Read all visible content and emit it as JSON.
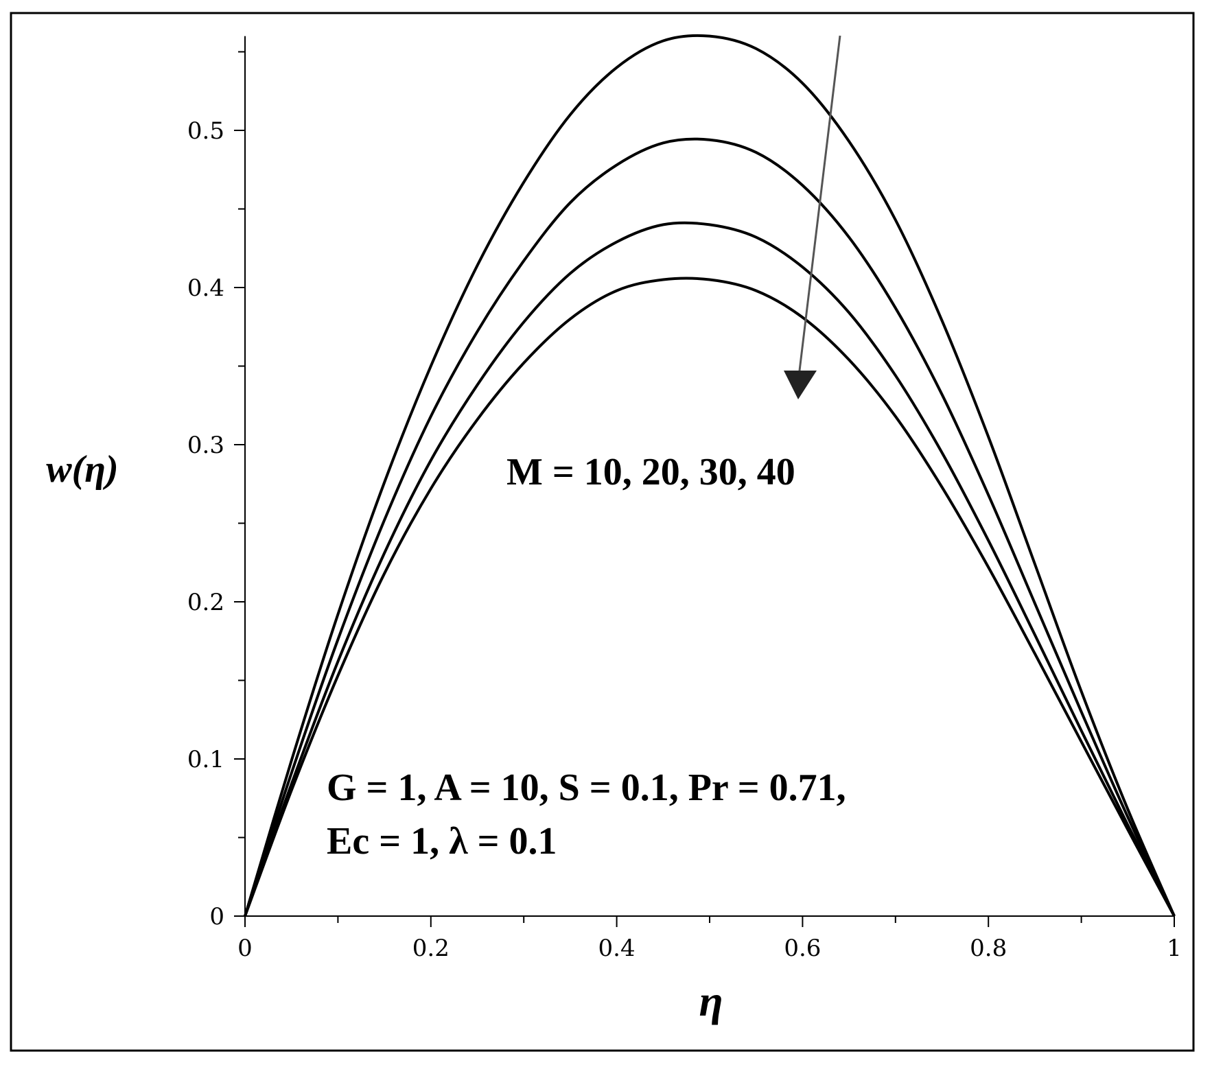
{
  "chart_data": {
    "type": "line",
    "xlabel": "η",
    "ylabel": "w(η)",
    "xlim": [
      0,
      1
    ],
    "ylim": [
      0,
      0.56
    ],
    "x_ticks": [
      "0",
      "0.2",
      "0.4",
      "0.6",
      "0.8",
      "1"
    ],
    "y_ticks": [
      "0",
      "0.1",
      "0.2",
      "0.3",
      "0.4",
      "0.5"
    ],
    "x": [
      0,
      0.05,
      0.1,
      0.15,
      0.2,
      0.25,
      0.3,
      0.35,
      0.4,
      0.45,
      0.5,
      0.55,
      0.6,
      0.65,
      0.7,
      0.75,
      0.8,
      0.85,
      0.9,
      0.95,
      1
    ],
    "series": [
      {
        "values": [
          0,
          0.099,
          0.192,
          0.276,
          0.35,
          0.414,
          0.467,
          0.51,
          0.54,
          0.557,
          0.56,
          0.552,
          0.53,
          0.493,
          0.443,
          0.379,
          0.305,
          0.224,
          0.143,
          0.068,
          0
        ]
      },
      {
        "values": [
          0,
          0.091,
          0.176,
          0.252,
          0.318,
          0.372,
          0.417,
          0.454,
          0.478,
          0.492,
          0.494,
          0.486,
          0.465,
          0.432,
          0.387,
          0.332,
          0.268,
          0.199,
          0.13,
          0.063,
          0
        ]
      },
      {
        "values": [
          0,
          0.084,
          0.162,
          0.231,
          0.29,
          0.338,
          0.378,
          0.409,
          0.429,
          0.44,
          0.44,
          0.432,
          0.413,
          0.384,
          0.344,
          0.295,
          0.239,
          0.179,
          0.118,
          0.058,
          0
        ]
      },
      {
        "values": [
          0,
          0.08,
          0.153,
          0.218,
          0.272,
          0.316,
          0.352,
          0.38,
          0.398,
          0.405,
          0.405,
          0.398,
          0.381,
          0.354,
          0.318,
          0.273,
          0.222,
          0.167,
          0.111,
          0.055,
          0
        ]
      }
    ],
    "annotations": {
      "m_label": "M = 10, 20, 30, 40",
      "params_line1": "G = 1, A = 10, S = 0.1, Pr = 0.71,",
      "params_line2": "Ec = 1, λ = 0.1"
    },
    "colors": {
      "line": "#000000",
      "frame": "#000000",
      "background": "#ffffff"
    },
    "grid": false
  }
}
